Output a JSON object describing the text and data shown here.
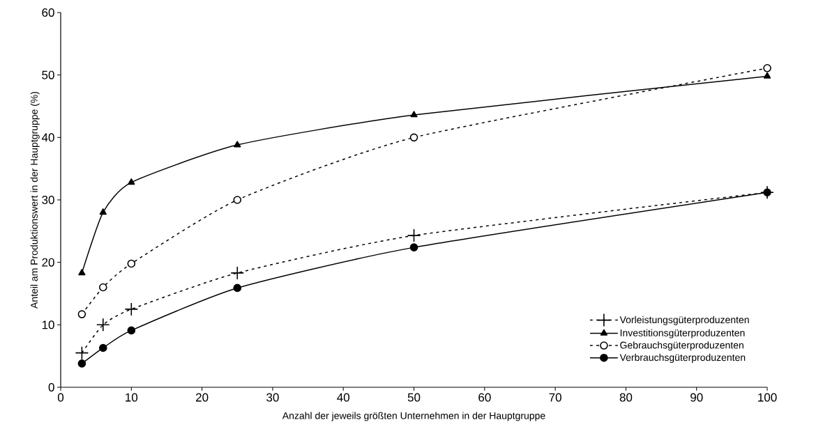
{
  "chart_data": {
    "type": "line",
    "xlabel": "Anzahl der jeweils größten Unternehmen in der Hauptgruppe",
    "ylabel": "Anteil am Produktionswert in der Hauptgruppe (%)",
    "x": [
      3,
      6,
      10,
      25,
      50,
      100
    ],
    "series": [
      {
        "name": "Vorleistungsgüterproduzenten",
        "color": "#000000",
        "values": [
          5.5,
          10,
          12.5,
          18.3,
          24.3,
          31.2
        ],
        "marker": "cross",
        "line_style": "dashed"
      },
      {
        "name": "Investitionsgüterproduzenten",
        "color": "#000000",
        "values": [
          18.3,
          28,
          32.8,
          38.8,
          43.6,
          49.8
        ],
        "marker": "triangle",
        "line_style": "solid"
      },
      {
        "name": "Gebrauchsgüterproduzenten",
        "color": "#000000",
        "values": [
          11.7,
          16,
          19.8,
          30,
          40,
          51.1
        ],
        "marker": "circle",
        "line_style": "dashed"
      },
      {
        "name": "Verbrauchsgüterproduzenten",
        "color": "#000000",
        "values": [
          3.8,
          6.3,
          9.1,
          15.9,
          22.4,
          31.2
        ],
        "marker": "circle",
        "line_style": "solid"
      }
    ],
    "xlim": [
      0,
      100
    ],
    "xticks": [
      0,
      10,
      20,
      30,
      40,
      50,
      60,
      70,
      80,
      90,
      100
    ],
    "ylim": [
      0,
      60
    ],
    "yticks": [
      0,
      10,
      20,
      30,
      40,
      50,
      60
    ],
    "grid": false,
    "legend": "bottom right"
  }
}
